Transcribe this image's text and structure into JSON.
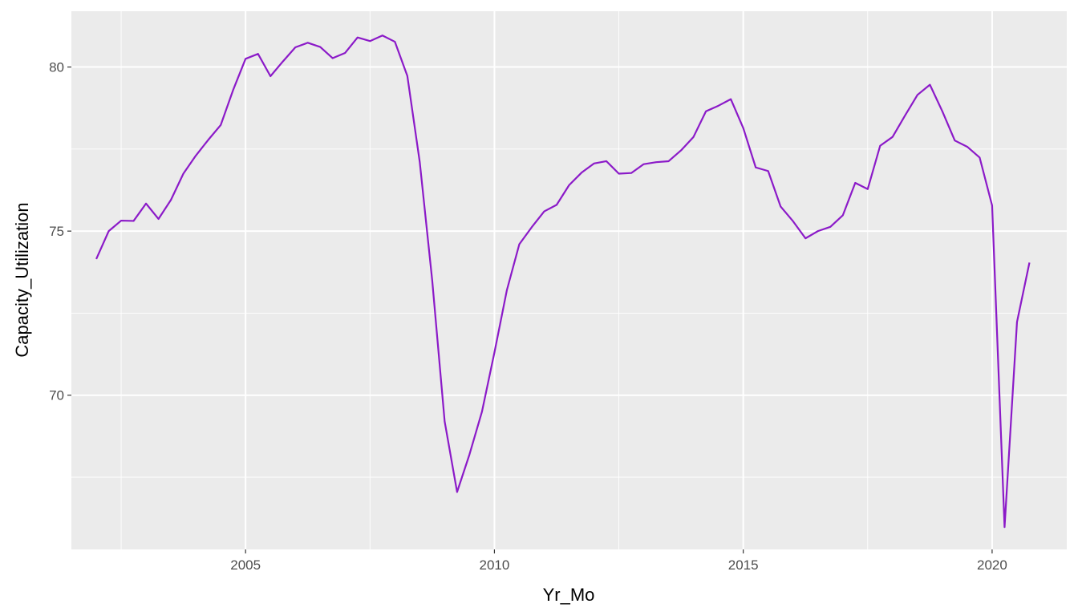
{
  "chart_data": {
    "type": "line",
    "title": "",
    "xlabel": "Yr_Mo",
    "ylabel": "Capacity_Utilization",
    "xlim": [
      2001.5,
      2021.5
    ],
    "ylim": [
      65.3,
      81.7
    ],
    "x_ticks": [
      2005,
      2010,
      2015,
      2020
    ],
    "x_tick_labels": [
      "2005",
      "2010",
      "2015",
      "2020"
    ],
    "y_ticks": [
      70,
      75,
      80
    ],
    "y_tick_labels": [
      "70",
      "75",
      "80"
    ],
    "grid": true,
    "background": "#EBEBEB",
    "grid_color": "#FFFFFF",
    "line_color": "#8B1AC8",
    "series": [
      {
        "x": [
          2002.0,
          2002.25,
          2002.5,
          2002.75,
          2003.0,
          2003.25,
          2003.5,
          2003.75,
          2004.0,
          2004.25,
          2004.5,
          2004.75,
          2005.0,
          2005.25,
          2005.5,
          2005.75,
          2006.0,
          2006.25,
          2006.5,
          2006.75,
          2007.0,
          2007.25,
          2007.5,
          2007.75,
          2008.0,
          2008.25,
          2008.5,
          2008.75,
          2009.0,
          2009.25,
          2009.5,
          2009.75,
          2010.0,
          2010.25,
          2010.5,
          2010.75,
          2011.0,
          2011.25,
          2011.5,
          2011.75,
          2012.0,
          2012.25,
          2012.5,
          2012.75,
          2013.0,
          2013.25,
          2013.5,
          2013.75,
          2014.0,
          2014.25,
          2014.5,
          2014.75,
          2015.0,
          2015.25,
          2015.5,
          2015.75,
          2016.0,
          2016.25,
          2016.5,
          2016.75,
          2017.0,
          2017.25,
          2017.5,
          2017.75,
          2018.0,
          2018.25,
          2018.5,
          2018.75,
          2019.0,
          2019.25,
          2019.5,
          2019.75,
          2020.0,
          2020.25,
          2020.5,
          2020.75
        ],
        "values": [
          74.15,
          75.0,
          75.32,
          75.31,
          75.84,
          75.37,
          75.95,
          76.75,
          77.3,
          77.78,
          78.23,
          79.3,
          80.25,
          80.4,
          79.72,
          80.17,
          80.6,
          80.74,
          80.61,
          80.27,
          80.43,
          80.9,
          80.79,
          80.96,
          80.77,
          79.73,
          77.1,
          73.5,
          69.2,
          67.05,
          68.2,
          69.5,
          71.3,
          73.2,
          74.6,
          75.12,
          75.6,
          75.8,
          76.4,
          76.78,
          77.06,
          77.13,
          76.75,
          76.77,
          77.04,
          77.1,
          77.13,
          77.46,
          77.87,
          78.65,
          78.82,
          79.02,
          78.14,
          76.94,
          76.83,
          75.75,
          75.3,
          74.78,
          75.0,
          75.13,
          75.48,
          76.47,
          76.28,
          77.6,
          77.87,
          78.52,
          79.15,
          79.46,
          78.65,
          77.76,
          77.57,
          77.24,
          75.78,
          65.98,
          72.23,
          74.04
        ]
      }
    ]
  }
}
